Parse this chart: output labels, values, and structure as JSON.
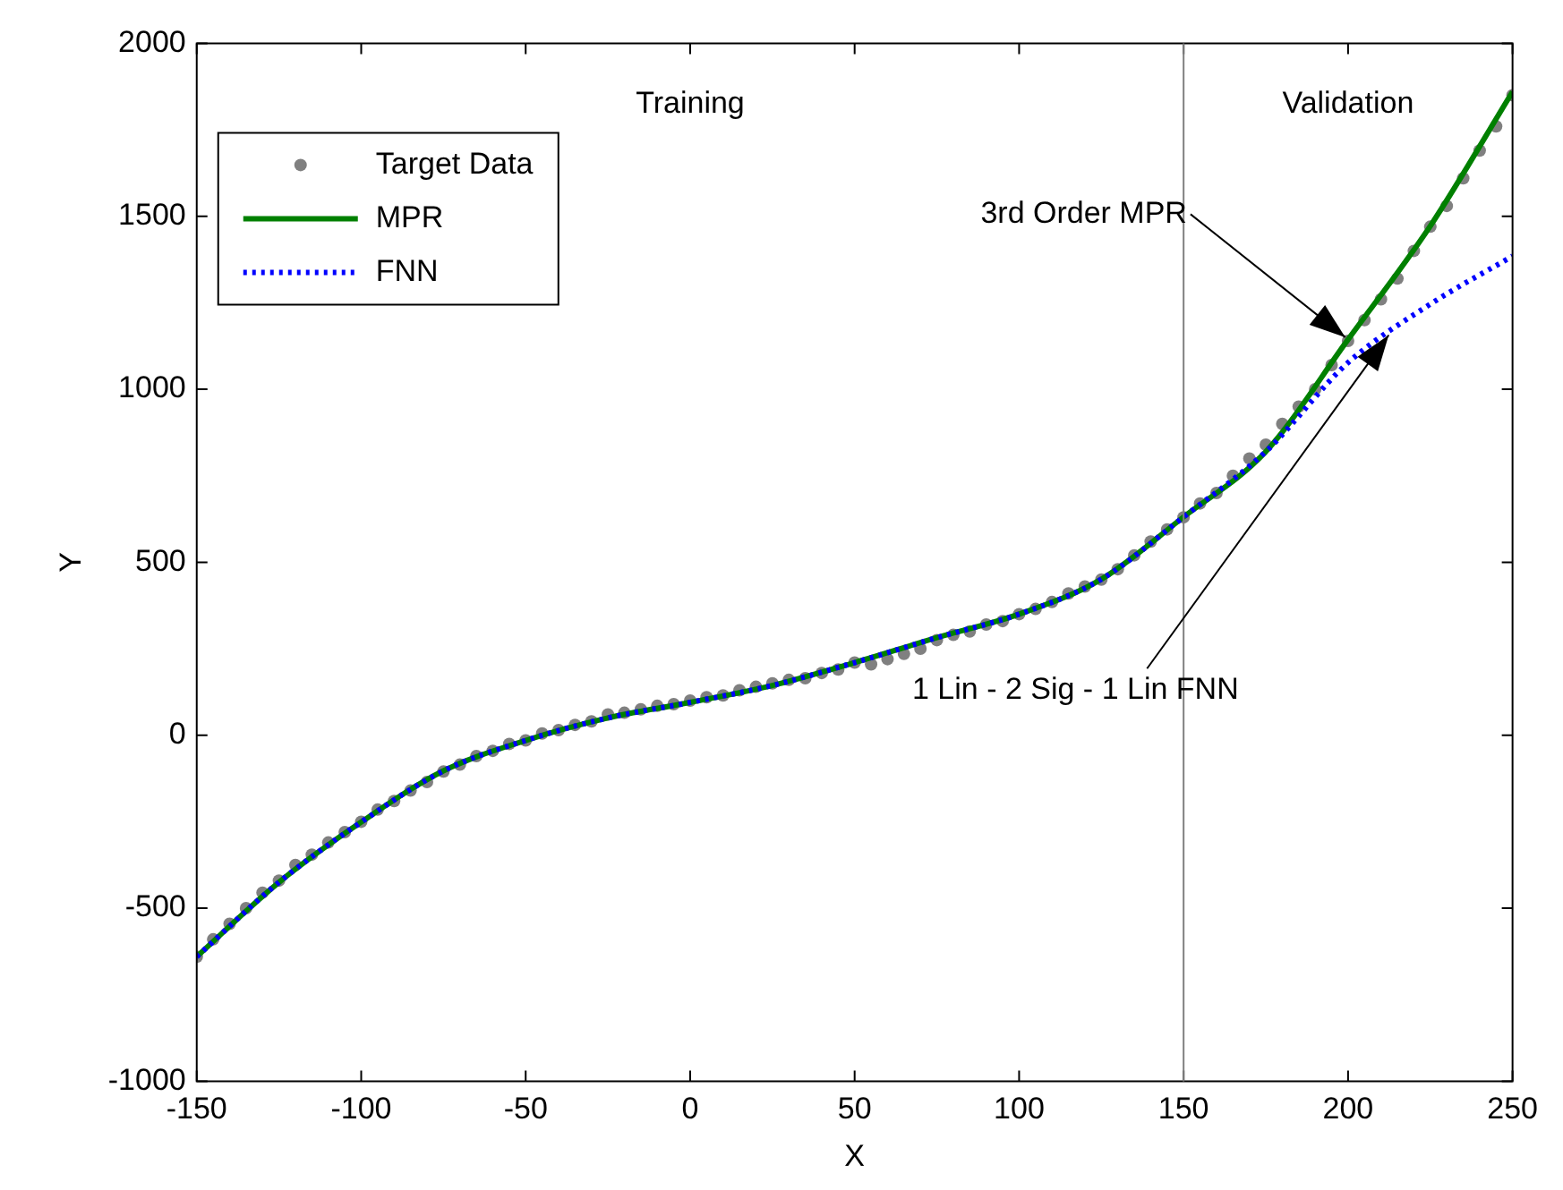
{
  "chart_data": {
    "type": "line",
    "xlabel": "X",
    "ylabel": "Y",
    "xlim": [
      -150,
      250
    ],
    "ylim": [
      -1000,
      2000
    ],
    "xticks": [
      -150,
      -100,
      -50,
      0,
      50,
      100,
      150,
      200,
      250
    ],
    "yticks": [
      -1000,
      -500,
      0,
      500,
      1000,
      1500,
      2000
    ],
    "grid": false,
    "legend": "top left",
    "series": [
      {
        "name": "Target Data",
        "type": "scatter",
        "marker": "circle",
        "color": "#808080",
        "x": [
          -150,
          -145,
          -140,
          -135,
          -130,
          -125,
          -120,
          -115,
          -110,
          -105,
          -100,
          -95,
          -90,
          -85,
          -80,
          -75,
          -70,
          -65,
          -60,
          -55,
          -50,
          -45,
          -40,
          -35,
          -30,
          -25,
          -20,
          -15,
          -10,
          -5,
          0,
          5,
          10,
          15,
          20,
          25,
          30,
          35,
          40,
          45,
          50,
          55,
          60,
          65,
          70,
          75,
          80,
          85,
          90,
          95,
          100,
          105,
          110,
          115,
          120,
          125,
          130,
          135,
          140,
          145,
          150,
          155,
          160,
          165,
          170,
          175,
          180,
          185,
          190,
          195,
          200,
          205,
          210,
          215,
          220,
          225,
          230,
          235,
          240,
          245,
          250
        ],
        "values": [
          -640,
          -590,
          -545,
          -500,
          -455,
          -420,
          -375,
          -345,
          -310,
          -280,
          -250,
          -215,
          -190,
          -160,
          -135,
          -105,
          -85,
          -60,
          -45,
          -25,
          -15,
          5,
          15,
          30,
          40,
          60,
          65,
          75,
          85,
          90,
          100,
          110,
          115,
          130,
          140,
          150,
          160,
          165,
          180,
          190,
          210,
          205,
          220,
          235,
          250,
          275,
          290,
          300,
          320,
          330,
          350,
          365,
          385,
          410,
          430,
          450,
          480,
          520,
          560,
          595,
          630,
          670,
          700,
          750,
          800,
          840,
          900,
          950,
          1000,
          1070,
          1140,
          1200,
          1260,
          1320,
          1400,
          1470,
          1530,
          1610,
          1690,
          1760,
          1850
        ]
      },
      {
        "name": "MPR",
        "type": "line",
        "marker": "none",
        "line_style": "solid",
        "color": "#008000",
        "x": [
          -150,
          -125,
          -100,
          -75,
          -50,
          -25,
          0,
          25,
          50,
          75,
          100,
          125,
          150,
          175,
          200,
          225,
          250
        ],
        "values": [
          -640,
          -425,
          -251,
          -103,
          -15,
          50,
          95,
          144,
          210,
          282,
          350,
          451,
          631,
          820,
          1144,
          1472,
          1860
        ]
      },
      {
        "name": "FNN",
        "type": "line",
        "marker": "none",
        "line_style": "dotted",
        "color": "#0000ff",
        "x": [
          -150,
          -125,
          -100,
          -75,
          -50,
          -25,
          0,
          25,
          50,
          75,
          100,
          125,
          150,
          175,
          200,
          225,
          250
        ],
        "values": [
          -640,
          -425,
          -251,
          -103,
          -15,
          50,
          95,
          144,
          210,
          282,
          350,
          451,
          631,
          820,
          1077,
          1246,
          1385
        ]
      }
    ],
    "ref_lines": [
      {
        "axis": "x",
        "value": 150,
        "color": "#808080",
        "line_style": "solid"
      }
    ],
    "annotations": [
      "Training",
      "Validation",
      {
        "text": "3rd Order MPR",
        "x": 200,
        "y": 1144
      },
      {
        "text": "1 Lin - 2 Sig - 1 Lin FNN",
        "x": 213,
        "y": 1165
      }
    ]
  }
}
